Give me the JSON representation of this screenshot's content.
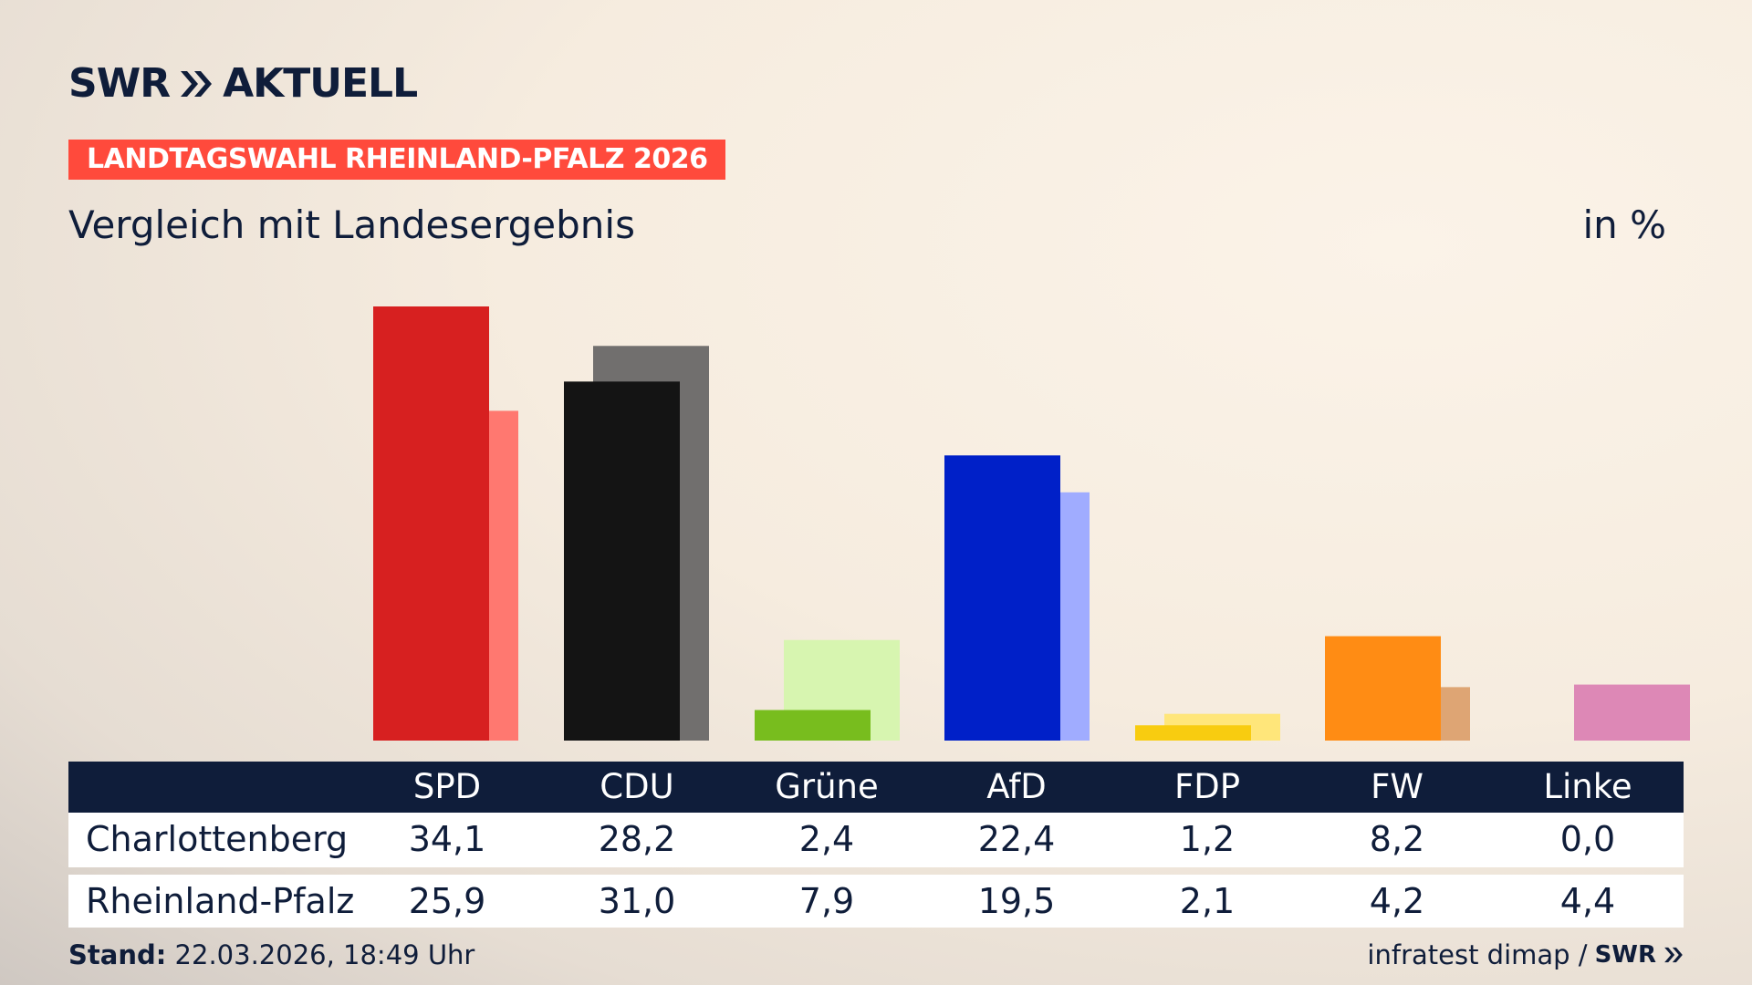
{
  "brand": {
    "name": "SWR",
    "product": "AKTUELL"
  },
  "tag": "LANDTAGSWAHL RHEINLAND-PFALZ 2026",
  "subtitle": "Vergleich mit Landesergebnis",
  "unit": "in %",
  "table": {
    "parties": [
      "SPD",
      "CDU",
      "Grüne",
      "AfD",
      "FDP",
      "FW",
      "Linke"
    ],
    "rows": [
      {
        "label": "Charlottenberg",
        "values": [
          "34,1",
          "28,2",
          "2,4",
          "22,4",
          "1,2",
          "8,2",
          "0,0"
        ]
      },
      {
        "label": "Rheinland-Pfalz",
        "values": [
          "25,9",
          "31,0",
          "7,9",
          "19,5",
          "2,1",
          "4,2",
          "4,4"
        ]
      }
    ]
  },
  "chart_data": {
    "type": "bar",
    "categories": [
      "SPD",
      "CDU",
      "Grüne",
      "AfD",
      "FDP",
      "FW",
      "Linke"
    ],
    "series": [
      {
        "name": "Charlottenberg",
        "values": [
          34.1,
          28.2,
          2.4,
          22.4,
          1.2,
          8.2,
          0.0
        ]
      },
      {
        "name": "Rheinland-Pfalz",
        "values": [
          25.9,
          31.0,
          7.9,
          19.5,
          2.1,
          4.2,
          4.4
        ]
      }
    ],
    "colors": {
      "local": [
        "#d72020",
        "#141414",
        "#78bd1e",
        "#0020c8",
        "#f8cc10",
        "#ff8c14",
        "#d688b4"
      ],
      "state": [
        "#ff7870",
        "#716f6e",
        "#d7f5b0",
        "#a0acff",
        "#ffe67a",
        "#dea574",
        "#dd88b6"
      ]
    },
    "ylim": [
      0,
      34.1
    ],
    "legend": "table-below"
  },
  "footer": {
    "stand_label": "Stand:",
    "stand_value": "22.03.2026, 18:49 Uhr",
    "source": "infratest dimap /",
    "source_brand": "SWR"
  }
}
